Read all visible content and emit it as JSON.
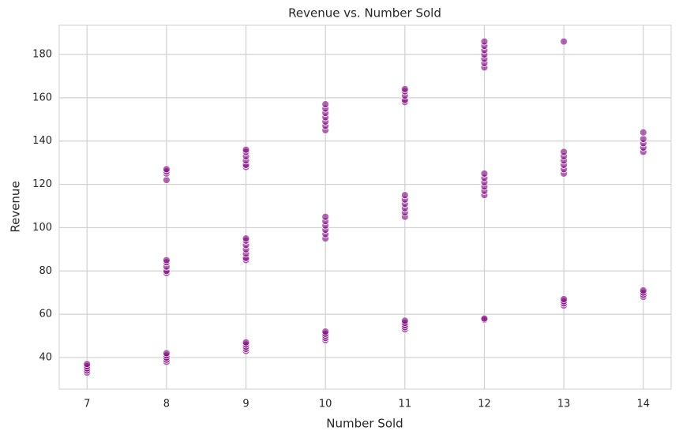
{
  "chart_data": {
    "type": "scatter",
    "title": "Revenue vs. Number Sold",
    "xlabel": "Number Sold",
    "ylabel": "Revenue",
    "color": "#800080",
    "grid": true,
    "xlim": [
      6.65,
      14.35
    ],
    "xticks": [
      7,
      8,
      9,
      10,
      11,
      12,
      13,
      14
    ],
    "ylim": [
      25.4,
      193.5
    ],
    "yticks": [
      40,
      60,
      80,
      100,
      120,
      140,
      160,
      180
    ],
    "x": [
      7,
      7,
      7,
      7,
      7,
      8,
      8,
      8,
      8,
      8,
      8,
      8,
      8,
      8,
      8,
      8,
      8,
      8,
      8,
      9,
      9,
      9,
      9,
      9,
      9,
      9,
      9,
      9,
      9,
      9,
      9,
      9,
      9,
      9,
      9,
      9,
      9,
      10,
      10,
      10,
      10,
      10,
      10,
      10,
      10,
      10,
      10,
      10,
      10,
      10,
      10,
      10,
      10,
      10,
      10,
      11,
      11,
      11,
      11,
      11,
      11,
      11,
      11,
      11,
      11,
      11,
      11,
      11,
      11,
      11,
      11,
      12,
      12,
      12,
      12,
      12,
      12,
      12,
      12,
      12,
      12,
      12,
      12,
      12,
      12,
      12,
      13,
      13,
      13,
      13,
      13,
      13,
      13,
      13,
      13,
      13,
      13,
      14,
      14,
      14,
      14,
      14,
      14,
      14,
      14,
      14
    ],
    "y": [
      33,
      34,
      35,
      36,
      37,
      38,
      39,
      40,
      41,
      42,
      79,
      80,
      82,
      84,
      85,
      122,
      125,
      126,
      127,
      43,
      44,
      45,
      46,
      47,
      85,
      86,
      88,
      90,
      92,
      94,
      95,
      128,
      129,
      131,
      133,
      135,
      136,
      48,
      49,
      50,
      51,
      52,
      95,
      97,
      99,
      101,
      103,
      105,
      145,
      147,
      149,
      151,
      153,
      155,
      157,
      53,
      54,
      55,
      56,
      57,
      105,
      107,
      109,
      111,
      113,
      115,
      158,
      159,
      161,
      163,
      164,
      57.5,
      58,
      115,
      117,
      119,
      121,
      123,
      125,
      174,
      176,
      178,
      180,
      182,
      184,
      186,
      64,
      65,
      66,
      67,
      125,
      127,
      129,
      131,
      133,
      135,
      186,
      68,
      69,
      70,
      71,
      135,
      137,
      139,
      141,
      144
    ]
  }
}
